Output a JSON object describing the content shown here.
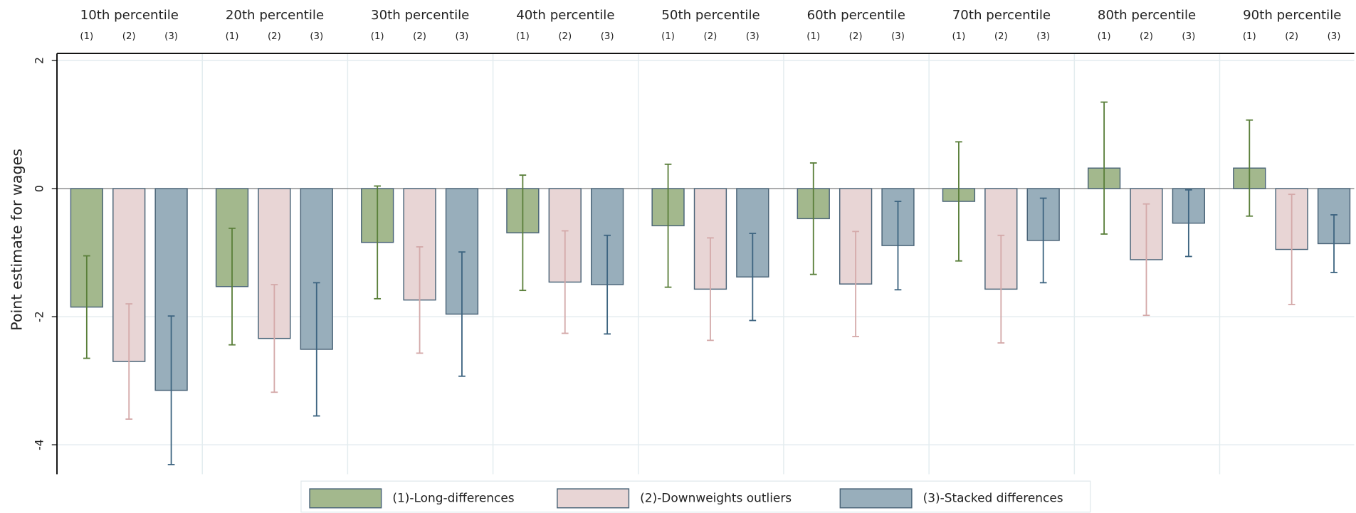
{
  "chart_data": {
    "type": "bar",
    "y_label": "Point estimate for wages",
    "categories": [
      "10th percentile",
      "20th percentile",
      "30th percentile",
      "40th percentile",
      "50th percentile",
      "60th percentile",
      "70th percentile",
      "80th percentile",
      "90th percentile"
    ],
    "sub_labels": [
      "(1)",
      "(2)",
      "(3)"
    ],
    "series": [
      {
        "name": "(1)-Long-differences",
        "color": "#a3b88d",
        "error_color": "#5a7f3a",
        "values": [
          -1.85,
          -1.53,
          -0.84,
          -0.69,
          -0.58,
          -0.47,
          -0.2,
          0.32,
          0.32
        ],
        "errors": [
          0.8,
          0.91,
          0.88,
          0.9,
          0.96,
          0.87,
          0.93,
          1.03,
          0.75
        ]
      },
      {
        "name": "(2)-Downweights outliers",
        "color": "#e8d5d5",
        "error_color": "#d4a9a9",
        "values": [
          -2.7,
          -2.34,
          -1.74,
          -1.46,
          -1.57,
          -1.49,
          -1.57,
          -1.11,
          -0.95
        ],
        "errors": [
          0.9,
          0.84,
          0.83,
          0.8,
          0.8,
          0.82,
          0.84,
          0.87,
          0.86
        ]
      },
      {
        "name": "(3)-Stacked differences",
        "color": "#98aebb",
        "error_color": "#3d6480",
        "values": [
          -3.15,
          -2.51,
          -1.96,
          -1.5,
          -1.38,
          -0.89,
          -0.81,
          -0.54,
          -0.86
        ],
        "errors": [
          1.16,
          1.04,
          0.97,
          0.77,
          0.68,
          0.69,
          0.66,
          0.52,
          0.45
        ]
      }
    ],
    "ylim": [
      -4.46,
      2.11
    ],
    "yticks": [
      -4,
      -2,
      0,
      2
    ],
    "grid": true
  }
}
